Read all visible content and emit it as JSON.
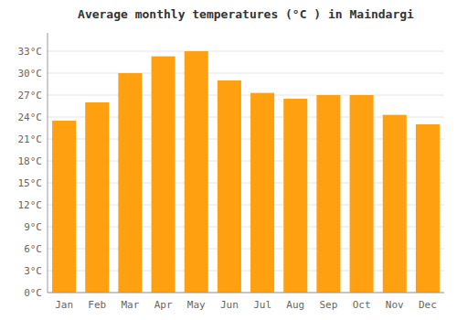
{
  "chart_data": {
    "type": "bar",
    "title": "Average monthly temperatures (°C ) in Maindargi",
    "categories": [
      "Jan",
      "Feb",
      "Mar",
      "Apr",
      "May",
      "Jun",
      "Jul",
      "Aug",
      "Sep",
      "Oct",
      "Nov",
      "Dec"
    ],
    "values": [
      23.5,
      26.0,
      30.0,
      32.3,
      33.0,
      29.0,
      27.3,
      26.5,
      27.0,
      27.0,
      24.3,
      23.0
    ],
    "color": "#FFA010",
    "ylim": [
      0,
      35.5
    ],
    "yticks": [
      {
        "value": 0,
        "label": "0°C"
      },
      {
        "value": 3,
        "label": "3°C"
      },
      {
        "value": 6,
        "label": "6°C"
      },
      {
        "value": 9,
        "label": "9°C"
      },
      {
        "value": 12,
        "label": "12°C"
      },
      {
        "value": 15,
        "label": "15°C"
      },
      {
        "value": 18,
        "label": "18°C"
      },
      {
        "value": 21,
        "label": "21°C"
      },
      {
        "value": 24,
        "label": "24°C"
      },
      {
        "value": 27,
        "label": "27°C"
      },
      {
        "value": 30,
        "label": "30°C"
      },
      {
        "value": 33,
        "label": "33°C"
      }
    ],
    "grid": true
  }
}
